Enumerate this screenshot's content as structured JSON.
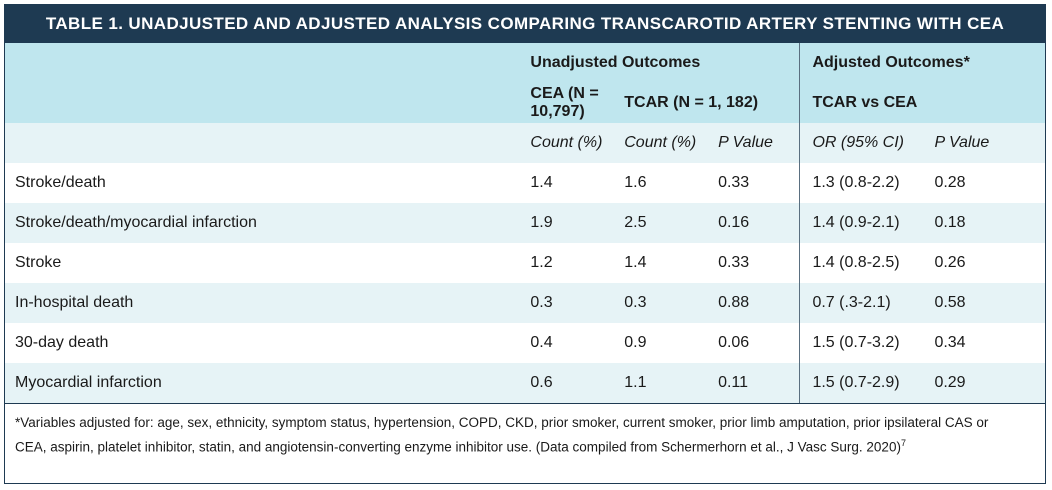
{
  "title": "TABLE 1. UNADJUSTED AND ADJUSTED ANALYSIS COMPARING TRANSCAROTID ARTERY STENTING WITH CEA",
  "group_headers": {
    "unadjusted": "Unadjusted Outcomes",
    "adjusted": "Adjusted Outcomes*"
  },
  "sub_headers": {
    "cea": "CEA (N = 10,797)",
    "tcar": "TCAR (N = 1, 182)",
    "tcar_vs_cea": "TCAR vs CEA"
  },
  "columns": {
    "count1": "Count (%)",
    "count2": "Count (%)",
    "p1": "P Value",
    "or": "OR (95% CI)",
    "p2": "P Value"
  },
  "rows": [
    {
      "label": "Stroke/death",
      "cea": "1.4",
      "tcar": "1.6",
      "p": "0.33",
      "or": "1.3 (0.8-2.2)",
      "p_adj": "0.28"
    },
    {
      "label": "Stroke/death/myocardial infarction",
      "cea": "1.9",
      "tcar": "2.5",
      "p": "0.16",
      "or": "1.4 (0.9-2.1)",
      "p_adj": "0.18"
    },
    {
      "label": "Stroke",
      "cea": "1.2",
      "tcar": "1.4",
      "p": "0.33",
      "or": "1.4 (0.8-2.5)",
      "p_adj": "0.26"
    },
    {
      "label": "In-hospital death",
      "cea": "0.3",
      "tcar": "0.3",
      "p": "0.88",
      "or": "0.7 (.3-2.1)",
      "p_adj": "0.58"
    },
    {
      "label": "30-day death",
      "cea": "0.4",
      "tcar": "0.9",
      "p": "0.06",
      "or": "1.5 (0.7-3.2)",
      "p_adj": "0.34"
    },
    {
      "label": "Myocardial infarction",
      "cea": "0.6",
      "tcar": "1.1",
      "p": "0.11",
      "or": "1.5 (0.7-2.9)",
      "p_adj": "0.29"
    }
  ],
  "footnote": {
    "line1": "*Variables adjusted for: age, sex, ethnicity, symptom status, hypertension, COPD, CKD, prior smoker, current smoker, prior limb amputation, prior ipsilateral CAS or",
    "line2": "CEA, aspirin, platelet inhibitor, statin, and angiotensin-converting enzyme inhibitor use. (Data compiled from Schermerhorn et al., J Vasc Surg. 2020)",
    "sup": "7"
  },
  "colors": {
    "title_bg": "#1e3a52",
    "band_a": "#bfe6ee",
    "band_b": "#e6f3f6"
  }
}
